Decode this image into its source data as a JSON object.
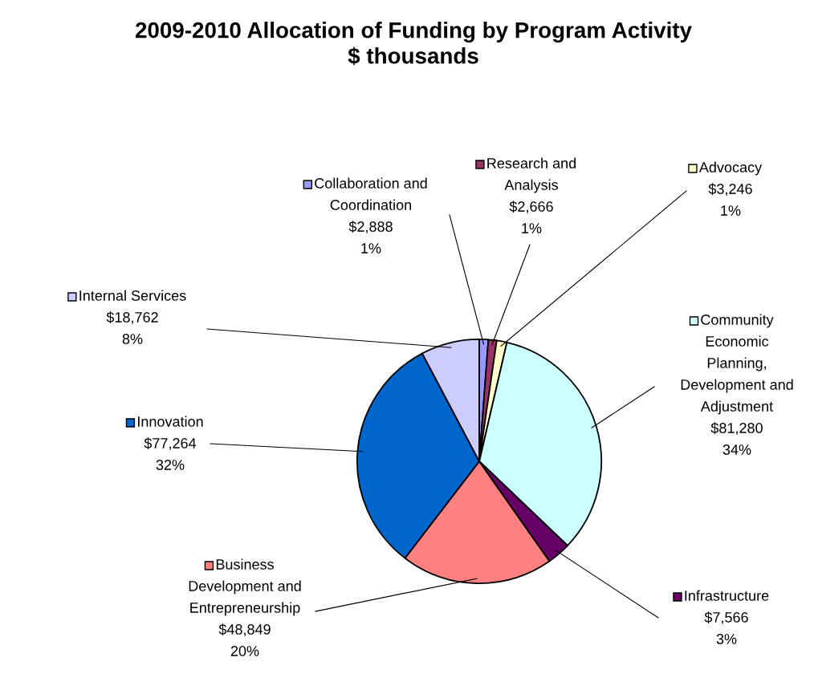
{
  "chart_data": {
    "type": "pie",
    "title": "2009-2010 Allocation of Funding by Program Activity\n$ thousands",
    "categories": [
      "Collaboration and Coordination",
      "Research and Analysis",
      "Advocacy",
      "Community Economic Planning, Development and Adjustment",
      "Infrastructure",
      "Business Development and Entrepreneurship",
      "Innovation",
      "Internal Services"
    ],
    "values": [
      2888,
      2666,
      3246,
      81280,
      7566,
      48849,
      77264,
      18762
    ],
    "colors": [
      "#9999ff",
      "#993366",
      "#ffffcc",
      "#ccffff",
      "#660066",
      "#ff8080",
      "#0066cc",
      "#ccccff"
    ],
    "value_labels": [
      "$2,888\n1%",
      "$2,666\n1%",
      "$3,246\n1%",
      "$81,280\n34%",
      "$7,566\n3%",
      "$48,849\n20%",
      "$77,264\n32%",
      "$18,762\n8%"
    ],
    "legend": true
  }
}
